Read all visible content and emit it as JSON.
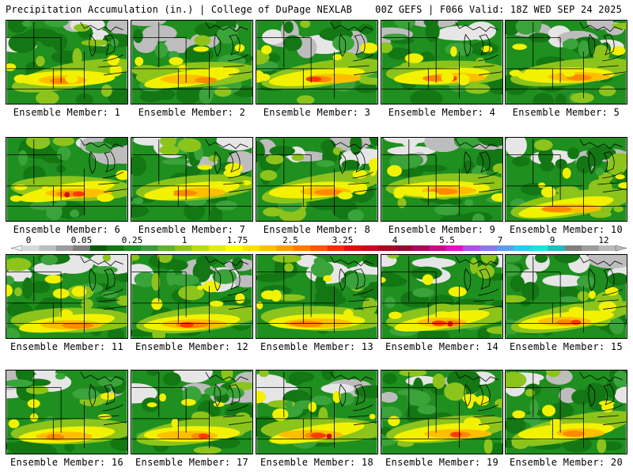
{
  "header": {
    "title": "Precipitation Accumulation (in.) | College of DuPage NEXLAB",
    "valid": "00Z GEFS | F066 Valid: 18Z WED SEP 24 2025"
  },
  "colorbar": {
    "ticks": [
      "0",
      "0.05",
      "0.25",
      "1",
      "1.75",
      "2.5",
      "3.25",
      "4",
      "5.5",
      "7",
      "9",
      "12"
    ],
    "colors": [
      "#d8d8d8",
      "#bcbcbc",
      "#9c9c9c",
      "#7e7e7e",
      "#0b5a0b",
      "#137713",
      "#1f8f1f",
      "#33a033",
      "#5cb42e",
      "#8cc41c",
      "#b9d915",
      "#e2ea16",
      "#ffff00",
      "#ffdf00",
      "#ffbf00",
      "#ff9c00",
      "#ff7a00",
      "#ff5400",
      "#f42c00",
      "#e00d0d",
      "#c40e1f",
      "#a80c20",
      "#900c30",
      "#a70a5c",
      "#c40a8c",
      "#e011c0",
      "#b54ce6",
      "#8878ee",
      "#5c9cf2",
      "#2bc8ef",
      "#1fe0e0",
      "#22bcbc",
      "#7f7f7f",
      "#9c9c9c",
      "#b9b9b9"
    ]
  },
  "chart_data": {
    "type": "heatmap",
    "title": "Precipitation Accumulation (in.)",
    "source": "College of DuPage NEXLAB",
    "model": "00Z GEFS",
    "forecast_hour": "F066",
    "valid_time": "18Z WED SEP 24 2025",
    "units": "in.",
    "scale_ticks": [
      0,
      0.05,
      0.25,
      1,
      1.75,
      2.5,
      3.25,
      4,
      5.5,
      7,
      9,
      12
    ],
    "members": [
      {
        "label": "Ensemble Member: 1",
        "max_in": 2.5
      },
      {
        "label": "Ensemble Member: 2",
        "max_in": 2.5
      },
      {
        "label": "Ensemble Member: 3",
        "max_in": 3.0
      },
      {
        "label": "Ensemble Member: 4",
        "max_in": 4.0
      },
      {
        "label": "Ensemble Member: 5",
        "max_in": 2.5
      },
      {
        "label": "Ensemble Member: 6",
        "max_in": 4.0
      },
      {
        "label": "Ensemble Member: 7",
        "max_in": 2.5
      },
      {
        "label": "Ensemble Member: 8",
        "max_in": 2.0
      },
      {
        "label": "Ensemble Member: 9",
        "max_in": 2.0
      },
      {
        "label": "Ensemble Member: 10",
        "max_in": 2.5
      },
      {
        "label": "Ensemble Member: 11",
        "max_in": 2.5
      },
      {
        "label": "Ensemble Member: 12",
        "max_in": 3.0
      },
      {
        "label": "Ensemble Member: 13",
        "max_in": 2.5
      },
      {
        "label": "Ensemble Member: 14",
        "max_in": 4.0
      },
      {
        "label": "Ensemble Member: 15",
        "max_in": 3.0
      },
      {
        "label": "Ensemble Member: 16",
        "max_in": 2.5
      },
      {
        "label": "Ensemble Member: 17",
        "max_in": 3.0
      },
      {
        "label": "Ensemble Member: 18",
        "max_in": 4.5
      },
      {
        "label": "Ensemble Member: 19",
        "max_in": 3.0
      },
      {
        "label": "Ensemble Member: 20",
        "max_in": 2.0
      }
    ]
  }
}
